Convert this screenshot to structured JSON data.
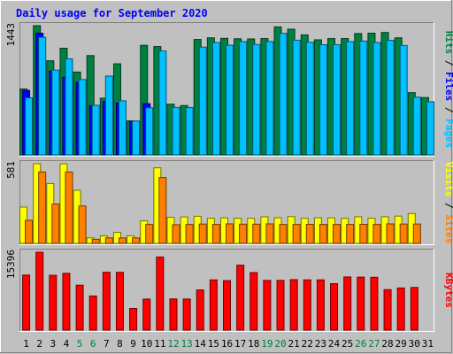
{
  "chart_data": {
    "type": "bar",
    "title": "Daily usage for September 2020",
    "days": [
      "1",
      "2",
      "3",
      "4",
      "5",
      "6",
      "7",
      "8",
      "9",
      "10",
      "11",
      "12",
      "13",
      "14",
      "15",
      "16",
      "17",
      "18",
      "19",
      "20",
      "21",
      "22",
      "23",
      "24",
      "25",
      "26",
      "27",
      "28",
      "29",
      "30",
      "31"
    ],
    "weekend_days": [
      "5",
      "6",
      "12",
      "13",
      "19",
      "20",
      "26",
      "27"
    ],
    "panels": [
      {
        "name": "hits-files-pages",
        "ymax_label": "1443",
        "ymax": 1443,
        "legend": [
          {
            "label": "Hits",
            "color": "#008040"
          },
          {
            "label": " / ",
            "color": "#000000"
          },
          {
            "label": "Files",
            "color": "#0000ff"
          },
          {
            "label": " / ",
            "color": "#000000"
          },
          {
            "label": "Pages",
            "color": "#00c0ff"
          }
        ],
        "series": [
          {
            "name": "Hits",
            "color": "#008040",
            "values": [
              736,
              1443,
              1051,
              1191,
              925,
              1109,
              633,
              1017,
              380,
              1224,
              1210,
              566,
              551,
              1289,
              1307,
              1301,
              1297,
              1295,
              1299,
              1429,
              1404,
              1340,
              1285,
              1299,
              1299,
              1355,
              1359,
              1367,
              1307,
              695,
              640
            ]
          },
          {
            "name": "Files",
            "color": "#0000ff",
            "values": [
              720,
              1358,
              937,
              868,
              810,
              551,
              597,
              578,
              371,
              571,
              0,
              0,
              0,
              0,
              0,
              0,
              0,
              0,
              0,
              0,
              0,
              0,
              0,
              0,
              0,
              0,
              0,
              0,
              0,
              0,
              0
            ]
          },
          {
            "name": "Pages",
            "color": "#00c0ff",
            "values": [
              637,
              1313,
              947,
              1072,
              841,
              554,
              880,
              604,
              378,
              526,
              1160,
              530,
              529,
              1204,
              1254,
              1225,
              1265,
              1233,
              1266,
              1357,
              1281,
              1258,
              1230,
              1230,
              1265,
              1271,
              1255,
              1279,
              1222,
              645,
              593
            ]
          }
        ]
      },
      {
        "name": "visits-sites",
        "ymax_label": "581",
        "ymax": 581,
        "legend": [
          {
            "label": "Visits",
            "color": "#ffff00"
          },
          {
            "label": " / ",
            "color": "#000000"
          },
          {
            "label": "Sites",
            "color": "#ff8000"
          }
        ],
        "series": [
          {
            "name": "Visits",
            "color": "#ffff00",
            "values": [
              265,
              581,
              436,
              581,
              387,
              40,
              55,
              80,
              55,
              165,
              551,
              190,
              193,
              198,
              183,
              186,
              183,
              183,
              194,
              187,
              195,
              183,
              187,
              186,
              183,
              194,
              183,
              194,
              199,
              218,
              0
            ]
          },
          {
            "name": "Sites",
            "color": "#ff8000",
            "values": [
              168,
              521,
              287,
              521,
              273,
              30,
              40,
              40,
              40,
              138,
              480,
              136,
              138,
              141,
              138,
              142,
              140,
              140,
              142,
              138,
              138,
              139,
              138,
              138,
              138,
              139,
              138,
              142,
              141,
              141,
              0
            ]
          }
        ]
      },
      {
        "name": "kbytes",
        "ymax_label": "15396",
        "ymax": 15396,
        "legend": [
          {
            "label": "KBytes",
            "color": "#ff0000"
          }
        ],
        "series": [
          {
            "name": "KBytes",
            "color": "#ff0000",
            "values": [
              10880,
              15396,
              10835,
              11229,
              8882,
              6745,
              11434,
              11424,
              4287,
              6133,
              14460,
              6168,
              6140,
              7937,
              9932,
              9780,
              12838,
              11368,
              9821,
              9820,
              9979,
              9932,
              9933,
              9179,
              10509,
              10476,
              10440,
              8001,
              8328,
              8430,
              0
            ]
          }
        ]
      }
    ]
  }
}
